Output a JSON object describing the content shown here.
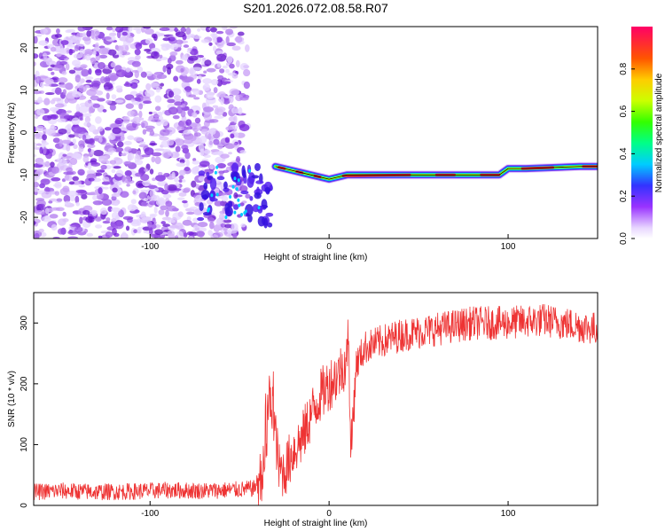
{
  "title": "S201.2026.072.08.58.R07",
  "chart_data": [
    {
      "type": "heatmap",
      "title": "S201.2026.072.08.58.R07",
      "xlabel": "Height of straight line (km)",
      "ylabel": "Frequency (Hz)",
      "xlim": [
        -165,
        150
      ],
      "ylim": [
        -25,
        25
      ],
      "xticks": [
        "-100",
        "0",
        "100"
      ],
      "yticks": [
        "-20",
        "-10",
        "0",
        "10",
        "20"
      ],
      "colorbar": {
        "label": "Normalized spectral amplitude",
        "range": [
          0,
          1
        ],
        "ticks": [
          "0.0",
          "0.2",
          "0.4",
          "0.6",
          "0.8"
        ]
      },
      "description_series": {
        "name": "carrier frequency trace",
        "x": [
          -30,
          -20,
          -10,
          0,
          10,
          40,
          70,
          95,
          100,
          110,
          140,
          150
        ],
        "y": [
          -8,
          -9,
          -10,
          -11,
          -10,
          -10,
          -10,
          -10,
          -8.5,
          -8.5,
          -8,
          -8
        ]
      }
    },
    {
      "type": "line",
      "xlabel": "Height of straight line (km)",
      "ylabel": "SNR (10 * v/v)",
      "xlim": [
        -165,
        150
      ],
      "ylim": [
        0,
        350
      ],
      "xticks": [
        "-100",
        "0",
        "100"
      ],
      "yticks": [
        "0",
        "100",
        "200",
        "300"
      ],
      "series": [
        {
          "name": "SNR",
          "color": "#ee3333",
          "x": [
            -165,
            -150,
            -130,
            -110,
            -90,
            -70,
            -50,
            -42,
            -36,
            -33,
            -30,
            -28,
            -25,
            -20,
            -15,
            -10,
            -5,
            0,
            5,
            10,
            11,
            12,
            15,
            20,
            30,
            40,
            60,
            80,
            100,
            120,
            140,
            150
          ],
          "y": [
            22,
            24,
            22,
            23,
            25,
            24,
            26,
            28,
            60,
            185,
            120,
            60,
            55,
            90,
            110,
            150,
            180,
            200,
            215,
            240,
            300,
            70,
            230,
            260,
            270,
            280,
            290,
            300,
            300,
            305,
            295,
            290
          ]
        }
      ]
    }
  ]
}
